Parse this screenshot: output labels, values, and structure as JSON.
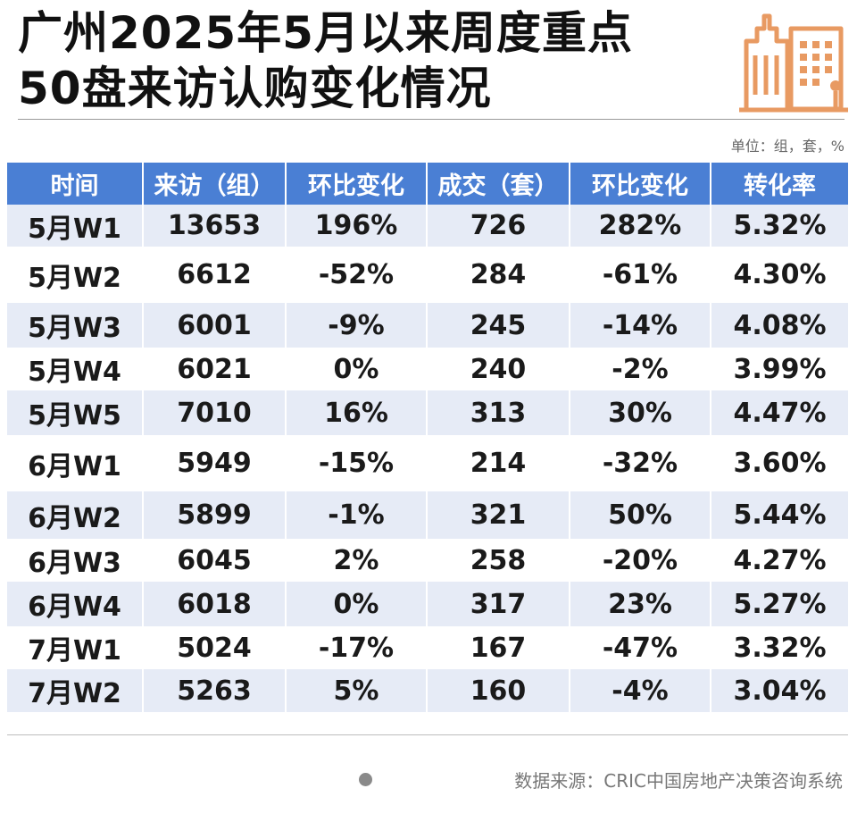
{
  "title": {
    "line1": "广州2025年5月以来周度重点",
    "line2": "50盘来访认购变化情况"
  },
  "logo_icon": "building-icon",
  "colors": {
    "header_bg": "#4a7fd4",
    "alt_row_bg": "#e6ebf6",
    "positive": "#d72424",
    "negative": "#2fa33a",
    "logo": "#e89a62"
  },
  "unit_note": "单位：组，套，%",
  "table": {
    "headers": [
      "时间",
      "来访（组）",
      "环比变化",
      "成交（套）",
      "环比变化",
      "转化率"
    ],
    "rows": [
      {
        "week": "5月W1",
        "visits": "13653",
        "visits_chg": "196%",
        "deals": "726",
        "deals_chg": "282%",
        "conv": "5.32%"
      },
      {
        "week": "5月W2",
        "visits": "6612",
        "visits_chg": "-52%",
        "deals": "284",
        "deals_chg": "-61%",
        "conv": "4.30%"
      },
      {
        "week": "5月W3",
        "visits": "6001",
        "visits_chg": "-9%",
        "deals": "245",
        "deals_chg": "-14%",
        "conv": "4.08%"
      },
      {
        "week": "5月W4",
        "visits": "6021",
        "visits_chg": "0%",
        "deals": "240",
        "deals_chg": "-2%",
        "conv": "3.99%"
      },
      {
        "week": "5月W5",
        "visits": "7010",
        "visits_chg": "16%",
        "deals": "313",
        "deals_chg": "30%",
        "conv": "4.47%"
      },
      {
        "week": "6月W1",
        "visits": "5949",
        "visits_chg": "-15%",
        "deals": "214",
        "deals_chg": "-32%",
        "conv": "3.60%"
      },
      {
        "week": "6月W2",
        "visits": "5899",
        "visits_chg": "-1%",
        "deals": "321",
        "deals_chg": "50%",
        "conv": "5.44%"
      },
      {
        "week": "6月W3",
        "visits": "6045",
        "visits_chg": "2%",
        "deals": "258",
        "deals_chg": "-20%",
        "conv": "4.27%"
      },
      {
        "week": "6月W4",
        "visits": "6018",
        "visits_chg": "0%",
        "deals": "317",
        "deals_chg": "23%",
        "conv": "5.27%"
      },
      {
        "week": "7月W1",
        "visits": "5024",
        "visits_chg": "-17%",
        "deals": "167",
        "deals_chg": "-47%",
        "conv": "3.32%"
      },
      {
        "week": "7月W2",
        "visits": "5263",
        "visits_chg": "5%",
        "deals": "160",
        "deals_chg": "-4%",
        "conv": "3.04%"
      }
    ]
  },
  "source": "数据来源：CRIC中国房地产决策咨询系统"
}
